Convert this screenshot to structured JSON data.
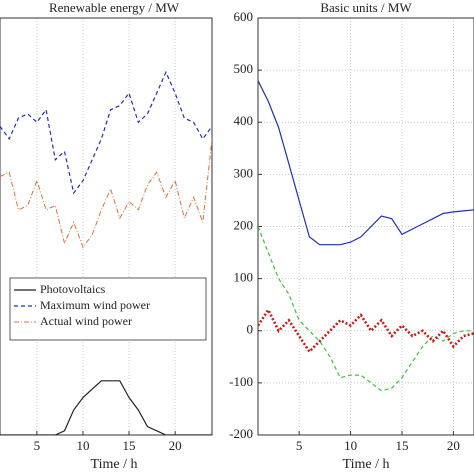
{
  "chart_data": [
    {
      "type": "line",
      "title": "Renewable energy / MW",
      "xlabel": "Time / h",
      "x": [
        1,
        2,
        3,
        4,
        5,
        6,
        7,
        8,
        9,
        10,
        11,
        12,
        13,
        14,
        15,
        16,
        17,
        18,
        19,
        20,
        21,
        22,
        23,
        24
      ],
      "xlim": [
        1,
        24
      ],
      "xticks": [
        5,
        10,
        15,
        20
      ],
      "ylim": [
        0,
        100
      ],
      "grid": true,
      "legend": "center left",
      "series": [
        {
          "name": "Photovoltaics",
          "color": "#222222",
          "style": "solid",
          "values": [
            0,
            0,
            0,
            0,
            0,
            0,
            0,
            1,
            6,
            9,
            11,
            13,
            13,
            13,
            9,
            6,
            2,
            1,
            0,
            0,
            0,
            0,
            0,
            0
          ]
        },
        {
          "name": "Maximum wind power",
          "color": "#1f2fb8",
          "style": "dashed",
          "values": [
            74,
            71,
            76,
            77,
            75,
            78,
            66,
            68,
            58,
            61,
            66,
            71,
            78,
            79,
            82,
            75,
            77,
            82,
            87,
            82,
            76,
            75,
            71,
            74
          ]
        },
        {
          "name": "Actual wind power",
          "color": "#e0703a",
          "style": "dashdot",
          "values": [
            62,
            63,
            54,
            55,
            61,
            54,
            55,
            46,
            51,
            45,
            48,
            54,
            59,
            52,
            56,
            54,
            60,
            63,
            57,
            61,
            52,
            57,
            51,
            71
          ]
        }
      ]
    },
    {
      "type": "line",
      "title": "Basic units / MW",
      "xlabel": "Time / h",
      "x": [
        1,
        2,
        3,
        4,
        5,
        6,
        7,
        8,
        9,
        10,
        11,
        12,
        13,
        14,
        15,
        16,
        17,
        18,
        19,
        20,
        21,
        22
      ],
      "xlim": [
        1,
        22
      ],
      "xticks": [
        5,
        10,
        15,
        20
      ],
      "ylim": [
        -200,
        600
      ],
      "yticks": [
        -200,
        -100,
        0,
        100,
        200,
        300,
        400,
        500,
        600
      ],
      "grid": true,
      "series": [
        {
          "color": "#1f2fb8",
          "style": "solid",
          "values": [
            480,
            440,
            390,
            320,
            250,
            180,
            165,
            165,
            165,
            170,
            180,
            200,
            220,
            215,
            185,
            195,
            205,
            215,
            225,
            228,
            230,
            232
          ]
        },
        {
          "color": "#3cc43c",
          "style": "dashed",
          "values": [
            200,
            150,
            100,
            70,
            20,
            0,
            -20,
            -50,
            -90,
            -85,
            -85,
            -100,
            -115,
            -110,
            -90,
            -60,
            -30,
            -10,
            -20,
            -5,
            0,
            0
          ]
        },
        {
          "color": "#d01818",
          "style": "dotted",
          "values": [
            10,
            40,
            0,
            20,
            -10,
            -40,
            -20,
            0,
            20,
            10,
            30,
            0,
            20,
            -10,
            10,
            -10,
            0,
            -20,
            0,
            -30,
            -10,
            -5
          ]
        }
      ]
    }
  ]
}
